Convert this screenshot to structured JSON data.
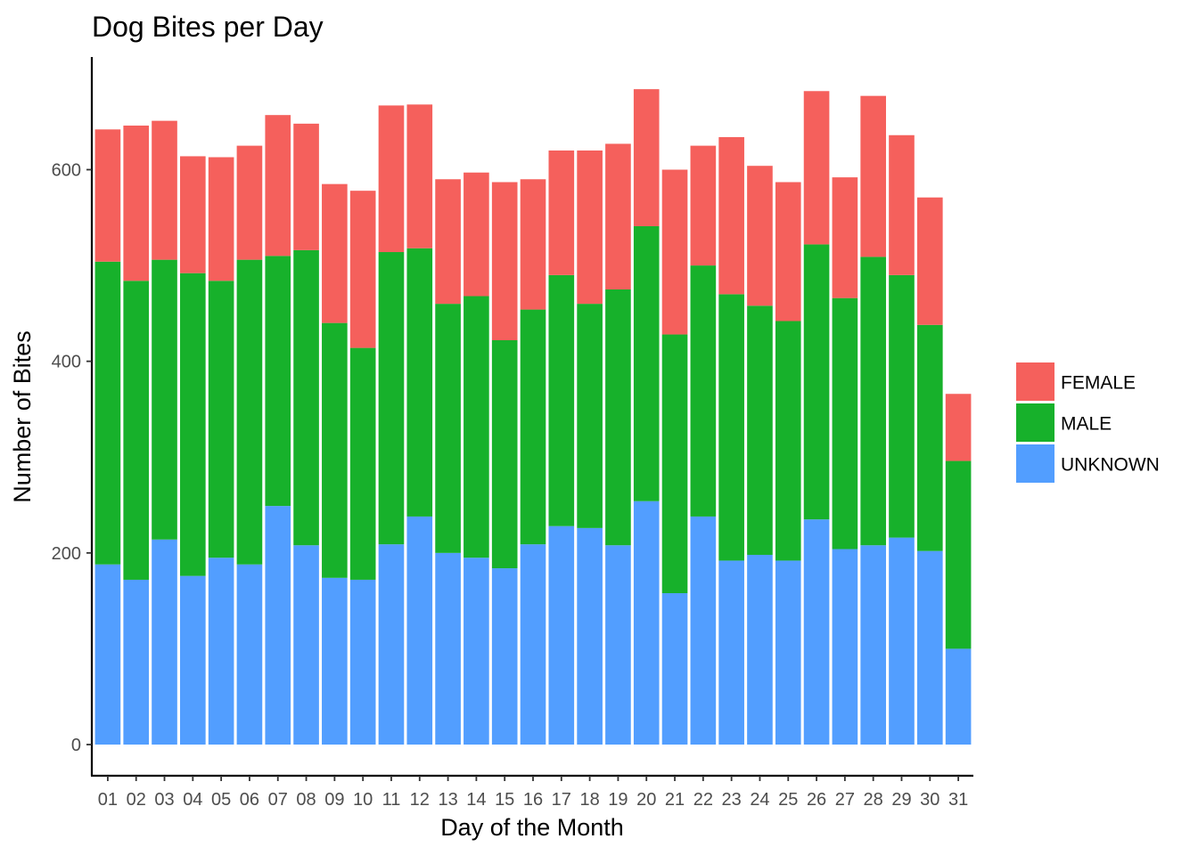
{
  "chart_data": {
    "type": "bar",
    "stacked": true,
    "title": "Dog Bites per Day",
    "xlabel": "Day of the Month",
    "ylabel": "Number of Bites",
    "ylim": [
      0,
      700
    ],
    "yticks": [
      0,
      200,
      400,
      600
    ],
    "grid": false,
    "legend_position": "right",
    "categories": [
      "01",
      "02",
      "03",
      "04",
      "05",
      "06",
      "07",
      "08",
      "09",
      "10",
      "11",
      "12",
      "13",
      "14",
      "15",
      "16",
      "17",
      "18",
      "19",
      "20",
      "21",
      "22",
      "23",
      "24",
      "25",
      "26",
      "27",
      "28",
      "29",
      "30",
      "31"
    ],
    "series": [
      {
        "name": "UNKNOWN",
        "color": "#529EFF",
        "values": [
          188,
          172,
          214,
          176,
          195,
          188,
          249,
          208,
          174,
          172,
          209,
          238,
          200,
          195,
          184,
          209,
          228,
          226,
          208,
          254,
          158,
          238,
          192,
          198,
          192,
          235,
          204,
          208,
          216,
          202,
          100
        ]
      },
      {
        "name": "MALE",
        "color": "#17B12B",
        "values": [
          316,
          312,
          292,
          316,
          289,
          318,
          261,
          308,
          266,
          242,
          305,
          280,
          260,
          273,
          238,
          245,
          262,
          234,
          267,
          287,
          270,
          262,
          278,
          260,
          250,
          287,
          262,
          301,
          274,
          236,
          196
        ]
      },
      {
        "name": "FEMALE",
        "color": "#F5605C",
        "values": [
          138,
          162,
          145,
          122,
          129,
          119,
          147,
          132,
          145,
          164,
          153,
          150,
          130,
          129,
          165,
          136,
          130,
          160,
          152,
          143,
          172,
          125,
          164,
          146,
          145,
          160,
          126,
          168,
          146,
          133,
          70
        ]
      }
    ],
    "legend_order": [
      "FEMALE",
      "MALE",
      "UNKNOWN"
    ]
  }
}
